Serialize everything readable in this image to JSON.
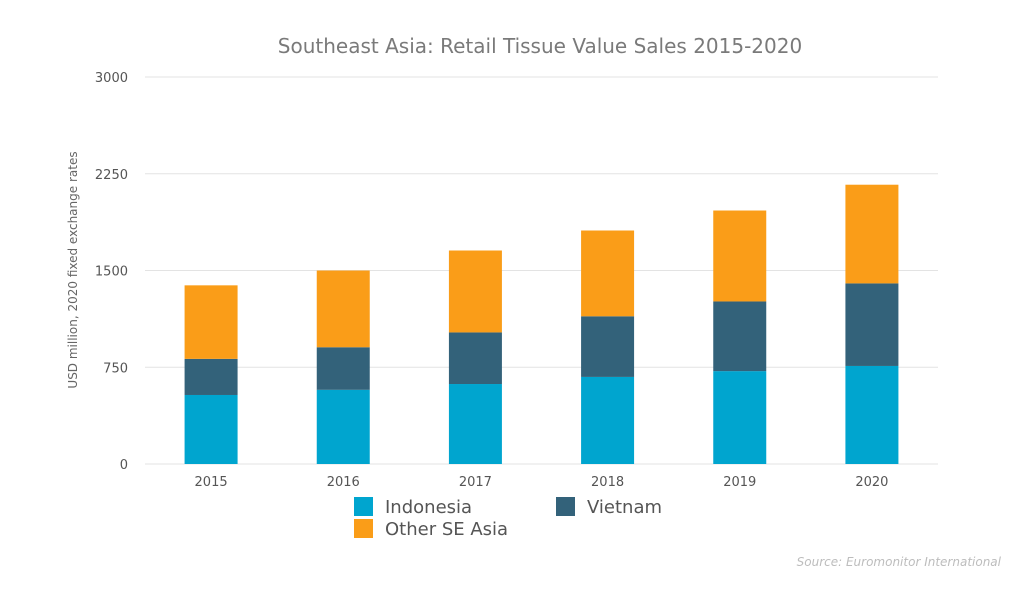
{
  "chart_data": {
    "type": "bar",
    "stacked": true,
    "title": "Southeast Asia: Retail Tissue Value Sales 2015-2020",
    "xlabel": "",
    "ylabel": "USD million, 2020 fixed exchange rates",
    "categories": [
      "2015",
      "2016",
      "2017",
      "2018",
      "2019",
      "2020"
    ],
    "y_ticks": [
      "0",
      "750",
      "1500",
      "2250",
      "3000"
    ],
    "ylim": [
      0,
      3000
    ],
    "grid": true,
    "legend_position": "bottom",
    "series": [
      {
        "name": "Indonesia",
        "color": "#00a5cf",
        "values": [
          535,
          575,
          620,
          675,
          720,
          760
        ]
      },
      {
        "name": "Vietnam",
        "color": "#33627a",
        "values": [
          280,
          330,
          400,
          470,
          540,
          640
        ]
      },
      {
        "name": "Other SE Asia",
        "color": "#fa9d18",
        "values": [
          570,
          595,
          635,
          665,
          705,
          765
        ]
      }
    ],
    "source": "Source: Euromonitor International"
  }
}
